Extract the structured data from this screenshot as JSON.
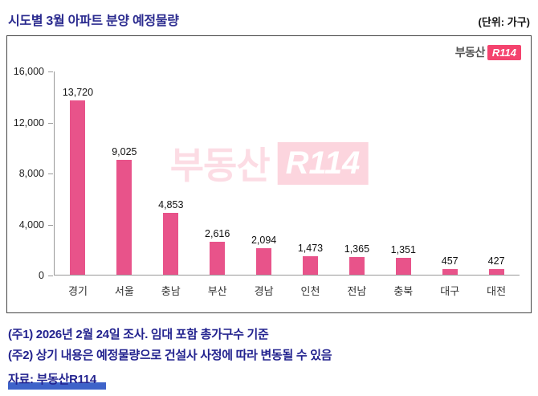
{
  "header": {
    "title": "시도별 3월 아파트 분양 예정물량",
    "unit": "(단위: 가구)"
  },
  "logo": {
    "prefix": "부동산",
    "badge": "R114"
  },
  "watermark": {
    "prefix": "부동산",
    "badge": "R114"
  },
  "chart_data": {
    "type": "bar",
    "title": "시도별 3월 아파트 분양 예정물량",
    "categories": [
      "경기",
      "서울",
      "충남",
      "부산",
      "경남",
      "인천",
      "전남",
      "충북",
      "대구",
      "대전"
    ],
    "values": [
      13720,
      9025,
      4853,
      2616,
      2094,
      1473,
      1365,
      1351,
      457,
      427
    ],
    "value_labels": [
      "13,720",
      "9,025",
      "4,853",
      "2,616",
      "2,094",
      "1,473",
      "1,365",
      "1,351",
      "457",
      "427"
    ],
    "xlabel": "",
    "ylabel": "",
    "ylim": [
      0,
      16000
    ],
    "yticks": [
      "16,000",
      "12,000",
      "8,000",
      "4,000",
      "0"
    ],
    "bar_color": "#e8538a",
    "grid": "off",
    "legend": "none"
  },
  "notes": {
    "note1": "(주1) 2026년 2월 24일 조사. 임대 포함 총가구수 기준",
    "note2": "(주2) 상기 내용은 예정물량으로 건설사 사정에 따라 변동될 수 있음",
    "source": "자료: 부동산R114"
  },
  "colors": {
    "bar": "#e8538a",
    "title_navy": "#2b2b8f",
    "logo_red": "#f4436e",
    "source_highlight": "#3e63c9"
  }
}
